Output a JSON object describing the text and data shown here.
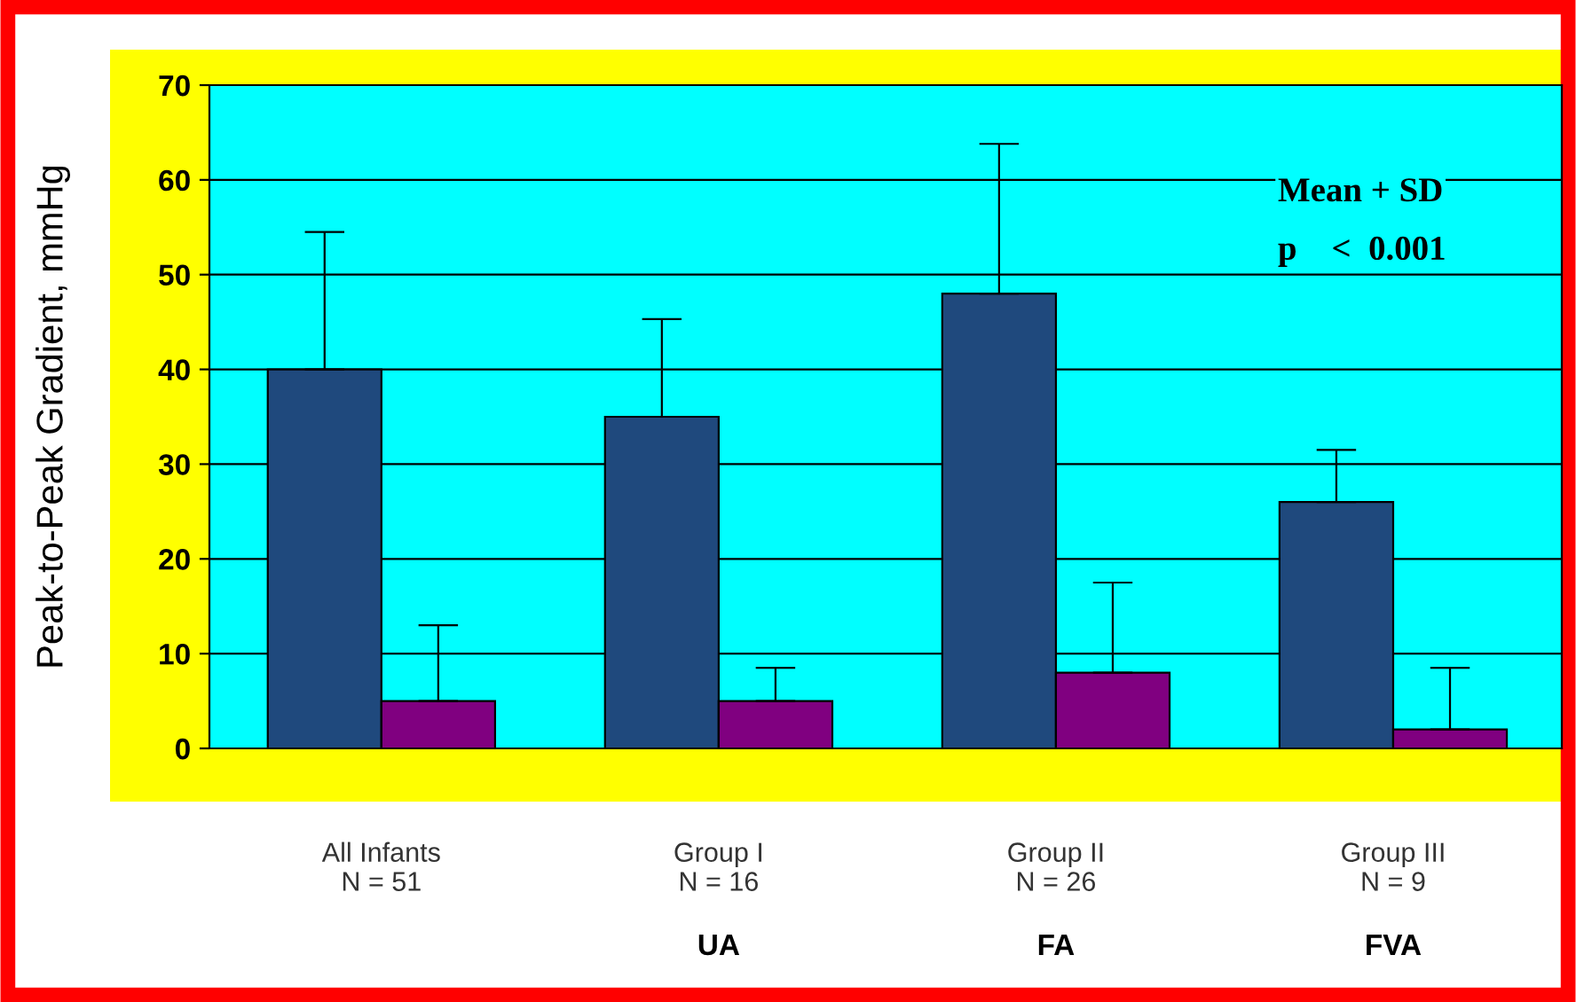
{
  "chart_data": {
    "type": "bar",
    "ylabel": "Peak-to-Peak Gradient, mmHg",
    "categories": [
      "All Infants\nN = 51",
      "Group I\nN = 16",
      "Group II\nN = 26",
      "Group III\nN = 9"
    ],
    "series": [
      {
        "color": "#1f497d",
        "values": [
          40,
          35,
          48,
          26
        ],
        "errors": [
          [
            40,
            54.5
          ],
          [
            35,
            45.3
          ],
          [
            48,
            63.8
          ],
          [
            26,
            31.5
          ]
        ]
      },
      {
        "color": "#800080",
        "values": [
          5,
          5,
          8,
          2
        ],
        "errors": [
          [
            5,
            13
          ],
          [
            5,
            8.5
          ],
          [
            8,
            17.5
          ],
          [
            2,
            8.5
          ]
        ]
      }
    ],
    "ylim": [
      0,
      70
    ],
    "yticks": [
      0,
      10,
      20,
      30,
      40,
      50,
      60,
      70
    ],
    "grid": "y",
    "legend": false,
    "annotations": [
      "Mean + SD",
      "p    <  0.001",
      "UA",
      "FA",
      "FVA"
    ]
  }
}
